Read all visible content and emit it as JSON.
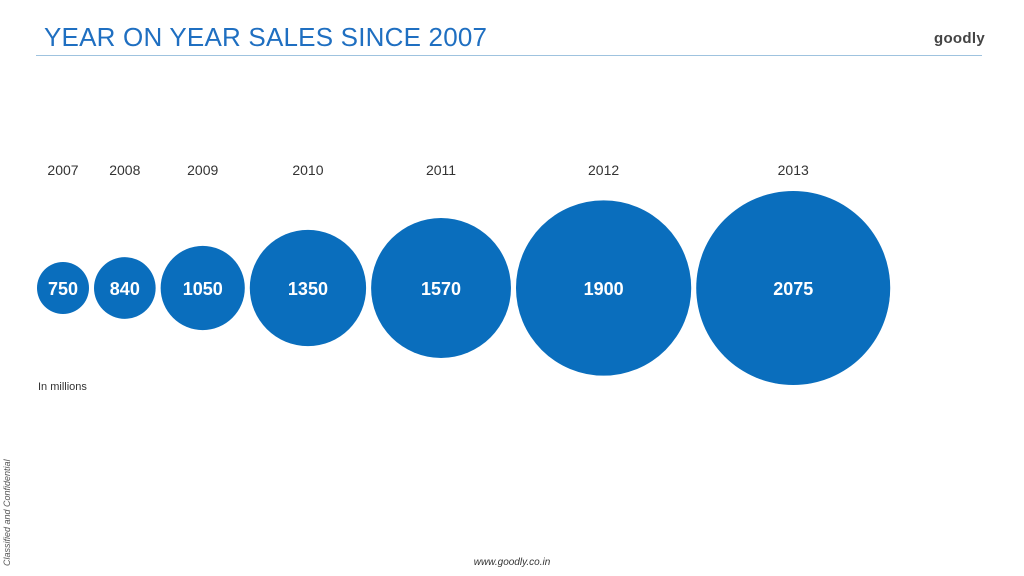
{
  "slide": {
    "title": "YEAR ON YEAR SALES SINCE 2007",
    "logo_text": "goodly",
    "unit_note": "In millions",
    "side_note": "Classified and Confidential",
    "footer_url": "www.goodly.co.in"
  },
  "colors": {
    "bubble": "#0a6ebd",
    "title": "#1f6fc1",
    "bubble_label": "#ffffff",
    "year_label": "#333333"
  },
  "chart_data": {
    "type": "bubble",
    "categories": [
      "2007",
      "2008",
      "2009",
      "2010",
      "2011",
      "2012",
      "2013"
    ],
    "values": [
      750,
      840,
      1050,
      1350,
      1570,
      1900,
      2075
    ],
    "value_labels": [
      "750",
      "840",
      "1050",
      "1350",
      "1570",
      "1900",
      "2075"
    ]
  }
}
